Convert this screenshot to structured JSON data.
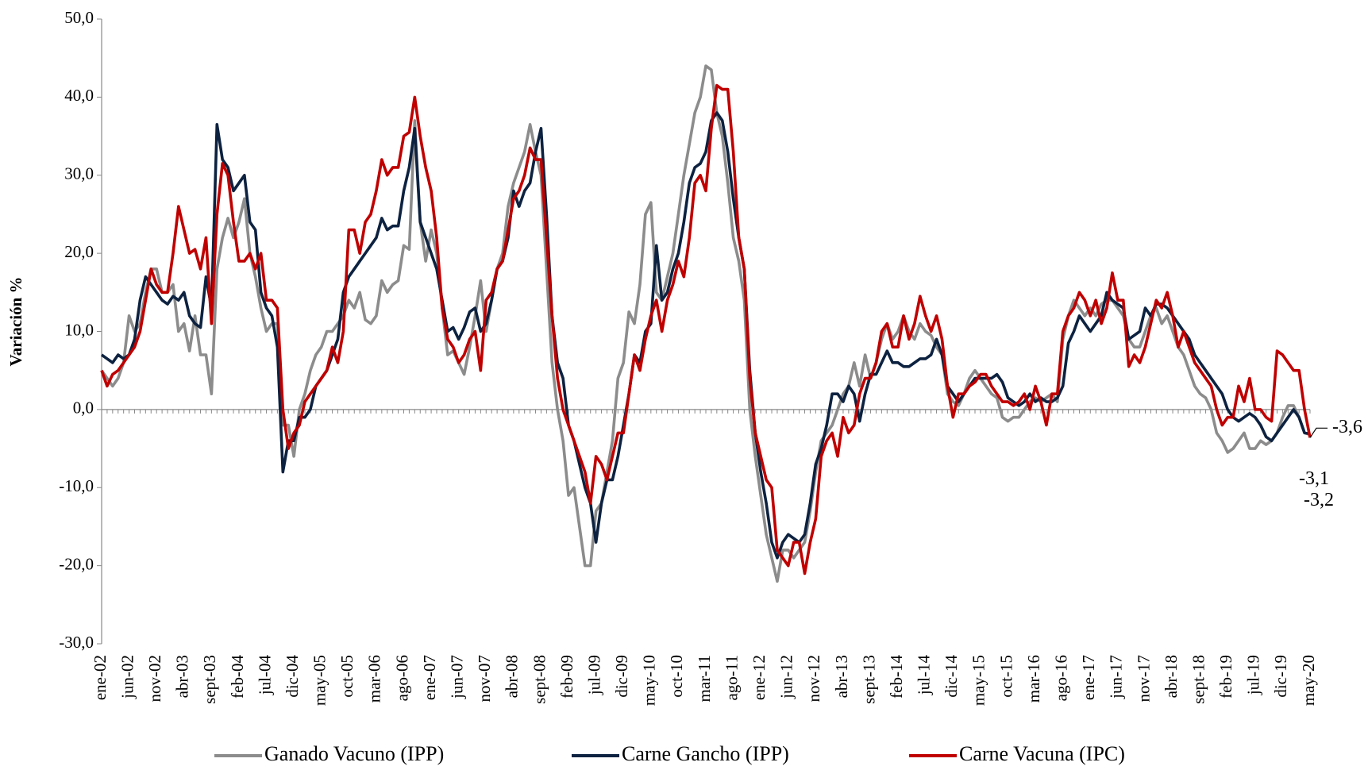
{
  "chart_data": {
    "type": "line",
    "ylabel": "Variación %",
    "ylim": [
      -30,
      50
    ],
    "yticks": [
      {
        "value": -30,
        "label": "-30,0"
      },
      {
        "value": -20,
        "label": "-20,0"
      },
      {
        "value": -10,
        "label": "-10,0"
      },
      {
        "value": 0,
        "label": "0,0"
      },
      {
        "value": 10,
        "label": "10,0"
      },
      {
        "value": 20,
        "label": "20,0"
      },
      {
        "value": 30,
        "label": "30,0"
      },
      {
        "value": 40,
        "label": "40,0"
      },
      {
        "value": 50,
        "label": "50,0"
      }
    ],
    "legend": "bottom",
    "categories": [
      "ene-02",
      null,
      null,
      null,
      null,
      "jun-02",
      null,
      null,
      null,
      null,
      "nov-02",
      null,
      null,
      null,
      null,
      "abr-03",
      null,
      null,
      null,
      null,
      "sept-03",
      null,
      null,
      null,
      null,
      "feb-04",
      null,
      null,
      null,
      null,
      "jul-04",
      null,
      null,
      null,
      null,
      "dic-04",
      null,
      null,
      null,
      null,
      "may-05",
      null,
      null,
      null,
      null,
      "oct-05",
      null,
      null,
      null,
      null,
      "mar-06",
      null,
      null,
      null,
      null,
      "ago-06",
      null,
      null,
      null,
      null,
      "ene-07",
      null,
      null,
      null,
      null,
      "jun-07",
      null,
      null,
      null,
      null,
      "nov-07",
      null,
      null,
      null,
      null,
      "abr-08",
      null,
      null,
      null,
      null,
      "sept-08",
      null,
      null,
      null,
      null,
      "feb-09",
      null,
      null,
      null,
      null,
      "jul-09",
      null,
      null,
      null,
      null,
      "dic-09",
      null,
      null,
      null,
      null,
      "may-10",
      null,
      null,
      null,
      null,
      "oct-10",
      null,
      null,
      null,
      null,
      "mar-11",
      null,
      null,
      null,
      null,
      "ago-11",
      null,
      null,
      null,
      null,
      "ene-12",
      null,
      null,
      null,
      null,
      "jun-12",
      null,
      null,
      null,
      null,
      "nov-12",
      null,
      null,
      null,
      null,
      "abr-13",
      null,
      null,
      null,
      null,
      "sept-13",
      null,
      null,
      null,
      null,
      "feb-14",
      null,
      null,
      null,
      null,
      "jul-14",
      null,
      null,
      null,
      null,
      "dic-14",
      null,
      null,
      null,
      null,
      "may-15",
      null,
      null,
      null,
      null,
      "oct-15",
      null,
      null,
      null,
      null,
      "mar-16",
      null,
      null,
      null,
      null,
      "ago-16",
      null,
      null,
      null,
      null,
      "ene-17",
      null,
      null,
      null,
      null,
      "jun-17",
      null,
      null,
      null,
      null,
      "nov-17",
      null,
      null,
      null,
      null,
      "abr-18",
      null,
      null,
      null,
      null,
      "sept-18",
      null,
      null,
      null,
      null,
      "feb-19",
      null,
      null,
      null,
      null,
      "jul-19",
      null,
      null,
      null,
      null,
      "dic-19",
      null,
      null,
      null,
      null,
      "may-20"
    ],
    "series": [
      {
        "name": "Ganado Vacuno (IPP)",
        "color": "#8c8c8c",
        "end_label": "-3,2",
        "values": [
          5,
          4,
          3,
          4,
          6,
          12,
          10,
          11,
          15,
          18,
          18,
          15,
          15,
          16,
          10,
          11,
          7.5,
          12,
          7,
          7,
          2,
          18,
          22,
          24.5,
          22,
          24,
          27,
          20,
          17,
          13,
          10,
          11,
          11,
          -2,
          -2,
          -6,
          0,
          2,
          5,
          7,
          8,
          10,
          10,
          11,
          12,
          14,
          13,
          15,
          11.5,
          11,
          12,
          16.5,
          15,
          16,
          16.5,
          21,
          20.5,
          37,
          24,
          19,
          23,
          20,
          13,
          7,
          7.5,
          6,
          4.5,
          8,
          12,
          16.5,
          10,
          14,
          18,
          20,
          26,
          29,
          31,
          33,
          36.5,
          33,
          30,
          18,
          6,
          0,
          -4,
          -11,
          -10,
          -15,
          -20,
          -20,
          -13,
          -12,
          -8,
          -4,
          4,
          6,
          12.5,
          11,
          16,
          25,
          26.5,
          15,
          14,
          17,
          20,
          25,
          30,
          34,
          38,
          40,
          44,
          43.5,
          38,
          35,
          29,
          22,
          19,
          14,
          0,
          -6,
          -11,
          -16,
          -19,
          -22,
          -18,
          -18,
          -19,
          -18,
          -17,
          -13,
          -8,
          -4,
          -3,
          -2,
          0,
          2,
          3,
          6,
          3,
          7,
          4,
          6,
          9,
          11,
          9,
          10,
          12,
          10,
          9,
          11,
          10,
          9.5,
          8,
          7,
          2,
          1,
          0.5,
          2,
          4,
          5,
          4,
          3,
          2,
          1.5,
          -1,
          -1.5,
          -1,
          -1,
          0,
          1,
          1.5,
          1,
          1.5,
          2,
          1,
          9,
          12,
          14,
          13,
          12,
          13,
          12,
          13.5,
          14,
          14,
          13,
          12,
          9,
          8,
          8,
          10,
          12,
          13,
          11,
          12,
          10,
          8,
          7,
          5,
          3,
          2,
          1.5,
          0,
          -3,
          -4,
          -5.5,
          -5,
          -4,
          -3,
          -5,
          -5,
          -4,
          -4.5,
          -4,
          -3,
          -1,
          0.5,
          0.5,
          -1,
          -3,
          -3.2
        ]
      },
      {
        "name": "Carne Gancho (IPP)",
        "color": "#0d2240",
        "end_label": "-3,1",
        "values": [
          7,
          6.5,
          6,
          7,
          6.5,
          7,
          9,
          14,
          17,
          16,
          15,
          14,
          13.5,
          14.5,
          14,
          15,
          12,
          11,
          10.5,
          17,
          13,
          36.5,
          32,
          31,
          28,
          29,
          30,
          24,
          23,
          15,
          13,
          12,
          8,
          -8,
          -4,
          -4,
          -1,
          -1,
          0,
          3,
          4,
          5,
          7,
          9,
          15,
          17,
          18,
          19,
          20,
          21,
          22,
          24.5,
          23,
          23.5,
          23.5,
          28,
          31,
          36,
          24,
          22,
          20,
          18,
          14,
          10,
          10.5,
          9,
          10.5,
          12.5,
          13,
          10,
          11,
          14,
          18,
          19,
          22,
          28,
          26,
          28,
          29,
          33,
          36,
          25,
          12,
          6,
          4,
          -2,
          -4,
          -7,
          -10,
          -12,
          -17,
          -12,
          -9,
          -9,
          -6,
          -2,
          2,
          7,
          6,
          10,
          11,
          21,
          14,
          15,
          18,
          20,
          24,
          29,
          31,
          31.5,
          33,
          37,
          38,
          37,
          33,
          27,
          22,
          18,
          5,
          -3,
          -8,
          -12,
          -17,
          -19,
          -17,
          -16,
          -16.5,
          -17,
          -16,
          -12,
          -7,
          -5,
          -2,
          2,
          2,
          1,
          3,
          2,
          -1.5,
          2,
          4.5,
          4.5,
          6,
          7.5,
          6,
          6,
          5.5,
          5.5,
          6,
          6.5,
          6.5,
          7,
          9,
          7,
          3,
          2,
          1,
          2,
          3,
          4,
          4,
          4,
          4,
          4.5,
          3.5,
          1.5,
          1,
          0.5,
          1,
          2,
          1,
          1.5,
          1,
          1,
          1.5,
          3,
          8.5,
          10,
          12,
          11,
          10,
          11,
          12,
          15,
          14,
          13.5,
          13,
          9,
          9.5,
          10,
          13,
          12,
          13.5,
          13.5,
          13,
          12,
          11,
          10,
          9,
          7,
          6,
          5,
          4,
          3,
          2,
          0,
          -1,
          -1.5,
          -1,
          -0.5,
          -1,
          -2,
          -3.5,
          -4,
          -3,
          -2,
          -1,
          0,
          -1,
          -3,
          -3.1
        ]
      },
      {
        "name": "Carne Vacuna (IPC)",
        "color": "#c00000",
        "end_label": "-3,6",
        "values": [
          5,
          3,
          4.5,
          5,
          6,
          7,
          8,
          10,
          14,
          18,
          16,
          15,
          15,
          20,
          26,
          23,
          20,
          20.5,
          18,
          22,
          11,
          25,
          31.5,
          30,
          24,
          19,
          19,
          20,
          18,
          20,
          14,
          14,
          13,
          0,
          -5,
          -3,
          -2,
          1,
          2,
          3,
          4,
          5,
          8,
          6,
          10,
          23,
          23,
          20,
          24,
          25,
          28,
          32,
          30,
          31,
          31,
          35,
          35.5,
          40,
          35,
          31,
          28,
          22,
          13,
          9,
          8,
          6,
          7,
          9,
          10,
          5,
          14,
          15,
          18,
          19,
          23,
          27,
          28,
          30,
          33.5,
          32,
          32,
          22,
          12,
          4,
          0,
          -2,
          -4,
          -6,
          -8,
          -12,
          -6,
          -7,
          -9,
          -6,
          -3,
          -3,
          2,
          7,
          5,
          9,
          12,
          14,
          10,
          14,
          16,
          19,
          17,
          22,
          29,
          30,
          28,
          36,
          41.5,
          41,
          41,
          33,
          22,
          18,
          4,
          -3,
          -6,
          -9,
          -10,
          -18,
          -19,
          -20,
          -17,
          -17,
          -21,
          -17,
          -14,
          -6,
          -4,
          -3,
          -6,
          -1,
          -3,
          -2,
          2,
          4,
          4,
          6,
          10,
          11,
          8,
          8,
          12,
          9,
          11,
          14.5,
          12,
          10,
          12,
          9,
          3,
          -1,
          2,
          2,
          3,
          3.5,
          4.5,
          4.5,
          3,
          2,
          1,
          1,
          0.5,
          1,
          2,
          0,
          3,
          1,
          -2,
          2,
          2,
          10,
          12,
          13,
          15,
          14,
          12,
          14,
          11,
          13,
          17.5,
          14,
          14,
          5.5,
          7,
          6,
          8,
          11,
          14,
          13,
          15,
          12,
          8,
          10,
          8,
          6,
          5,
          4,
          3,
          0,
          -2,
          -1,
          -1,
          3,
          1,
          4,
          0,
          0,
          -1,
          -1.5,
          7.5,
          7,
          6,
          5,
          5,
          0,
          -3.6
        ]
      }
    ]
  }
}
